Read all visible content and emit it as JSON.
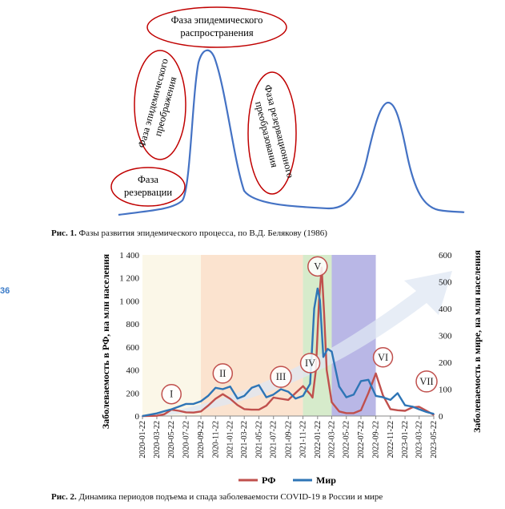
{
  "page_number": "36",
  "figure1": {
    "caption_bold": "Рис. 1.",
    "caption_text": " Фазы развития эпидемического процесса, по В.Д. Белякову (1986)",
    "phases": {
      "reservation_line1": "Фаза",
      "reservation_line2": "резервации",
      "transformation_line1": "Фаза эпидемического",
      "transformation_line2": "преображения",
      "spread_line1": "Фаза эпидемического",
      "spread_line2": "распространения",
      "reservation_transform_line1": "Фаза резервационного",
      "reservation_transform_line2": "преобразования"
    },
    "colors": {
      "curve": "#4472c4",
      "ellipse": "#c00000"
    }
  },
  "figure2": {
    "caption_bold": "Рис. 2.",
    "caption_text": " Динамика периодов подъема и спада заболеваемости COVID-19 в России и мире",
    "legend": {
      "rf": "РФ",
      "world": "Мир"
    }
  },
  "chart_data": {
    "type": "line",
    "title": "",
    "ylabel_left": "Заболеваемость в РФ, на млн населения",
    "ylabel_right": "Заболеваемость в мире, на млн населения",
    "yticks_left": [
      "0",
      "200",
      "400",
      "600",
      "800",
      "1 000",
      "1 200",
      "1 400"
    ],
    "yticks_right": [
      "0",
      "100",
      "200",
      "300",
      "400",
      "500",
      "600"
    ],
    "ylim_left": [
      0,
      1400
    ],
    "ylim_right": [
      0,
      600
    ],
    "x_categories": [
      "2020-01-22",
      "2020-03-22",
      "2020-05-22",
      "2020-07-22",
      "2020-09-22",
      "2020-11-22",
      "2021-01-22",
      "2021-03-22",
      "2021-05-22",
      "2021-07-22",
      "2021-09-22",
      "2021-11-22",
      "2022-01-22",
      "2022-03-22",
      "2022-05-22",
      "2022-07-22",
      "2022-09-22",
      "2022-11-22",
      "2023-01-22",
      "2023-03-22",
      "2023-05-22"
    ],
    "period_labels": [
      "I",
      "II",
      "III",
      "IV",
      "V",
      "VI",
      "VII"
    ],
    "period_label_positions": [
      {
        "label": "I",
        "x": "2020-05-22",
        "y_left": 190
      },
      {
        "label": "II",
        "x": "2020-12-22",
        "y_left": 370
      },
      {
        "label": "III",
        "x": "2021-08-22",
        "y_left": 340
      },
      {
        "label": "IV",
        "x": "2021-12-22",
        "y_left": 460
      },
      {
        "label": "V",
        "x": "2022-01-22",
        "y_left": 1300
      },
      {
        "label": "VI",
        "x": "2022-10-22",
        "y_left": 510
      },
      {
        "label": "VII",
        "x": "2023-04-22",
        "y_left": 300
      }
    ],
    "shaded_periods": [
      {
        "from": "2020-01-22",
        "to": "2020-09-22",
        "color": "#fbf7e8"
      },
      {
        "from": "2020-09-22",
        "to": "2021-11-22",
        "color": "#fbe3cf"
      },
      {
        "from": "2021-11-22",
        "to": "2022-03-22",
        "color": "#d6ebcb"
      },
      {
        "from": "2022-03-22",
        "to": "2022-09-22",
        "color": "#b9b7e6"
      }
    ],
    "series": [
      {
        "name": "РФ",
        "axis": "left",
        "color": "#c0504d",
        "points": [
          [
            "2020-01-22",
            0
          ],
          [
            "2020-03-22",
            2
          ],
          [
            "2020-04-22",
            15
          ],
          [
            "2020-05-22",
            55
          ],
          [
            "2020-06-22",
            45
          ],
          [
            "2020-07-22",
            32
          ],
          [
            "2020-08-22",
            30
          ],
          [
            "2020-09-22",
            40
          ],
          [
            "2020-10-22",
            90
          ],
          [
            "2020-11-22",
            150
          ],
          [
            "2020-12-22",
            190
          ],
          [
            "2021-01-22",
            150
          ],
          [
            "2021-02-22",
            95
          ],
          [
            "2021-03-22",
            60
          ],
          [
            "2021-04-22",
            55
          ],
          [
            "2021-05-22",
            55
          ],
          [
            "2021-06-22",
            90
          ],
          [
            "2021-07-22",
            160
          ],
          [
            "2021-08-22",
            150
          ],
          [
            "2021-09-22",
            140
          ],
          [
            "2021-10-22",
            200
          ],
          [
            "2021-11-22",
            260
          ],
          [
            "2021-12-22",
            190
          ],
          [
            "2022-01-01",
            160
          ],
          [
            "2022-01-15",
            400
          ],
          [
            "2022-01-28",
            1000
          ],
          [
            "2022-02-08",
            1290
          ],
          [
            "2022-02-18",
            900
          ],
          [
            "2022-03-01",
            400
          ],
          [
            "2022-03-22",
            120
          ],
          [
            "2022-04-22",
            40
          ],
          [
            "2022-05-22",
            25
          ],
          [
            "2022-06-22",
            25
          ],
          [
            "2022-07-22",
            50
          ],
          [
            "2022-08-22",
            200
          ],
          [
            "2022-09-22",
            370
          ],
          [
            "2022-10-22",
            180
          ],
          [
            "2022-11-22",
            60
          ],
          [
            "2022-12-22",
            50
          ],
          [
            "2023-01-22",
            45
          ],
          [
            "2023-02-22",
            75
          ],
          [
            "2023-03-22",
            80
          ],
          [
            "2023-04-22",
            45
          ],
          [
            "2023-05-22",
            10
          ]
        ]
      },
      {
        "name": "Мир",
        "axis": "right",
        "color": "#2e75b6",
        "points": [
          [
            "2020-01-22",
            0
          ],
          [
            "2020-03-22",
            10
          ],
          [
            "2020-04-22",
            18
          ],
          [
            "2020-05-22",
            25
          ],
          [
            "2020-06-22",
            35
          ],
          [
            "2020-07-22",
            45
          ],
          [
            "2020-08-22",
            45
          ],
          [
            "2020-09-22",
            55
          ],
          [
            "2020-10-22",
            75
          ],
          [
            "2020-11-22",
            105
          ],
          [
            "2020-12-22",
            100
          ],
          [
            "2021-01-22",
            110
          ],
          [
            "2021-02-22",
            65
          ],
          [
            "2021-03-22",
            75
          ],
          [
            "2021-04-22",
            105
          ],
          [
            "2021-05-22",
            115
          ],
          [
            "2021-06-22",
            70
          ],
          [
            "2021-07-22",
            80
          ],
          [
            "2021-08-22",
            100
          ],
          [
            "2021-09-22",
            90
          ],
          [
            "2021-10-22",
            65
          ],
          [
            "2021-11-22",
            75
          ],
          [
            "2021-12-22",
            120
          ],
          [
            "2022-01-08",
            400
          ],
          [
            "2022-01-22",
            475
          ],
          [
            "2022-02-01",
            430
          ],
          [
            "2022-02-15",
            220
          ],
          [
            "2022-03-05",
            250
          ],
          [
            "2022-03-22",
            240
          ],
          [
            "2022-04-22",
            110
          ],
          [
            "2022-05-22",
            70
          ],
          [
            "2022-06-22",
            80
          ],
          [
            "2022-07-22",
            130
          ],
          [
            "2022-08-22",
            135
          ],
          [
            "2022-09-22",
            75
          ],
          [
            "2022-10-22",
            70
          ],
          [
            "2022-11-22",
            60
          ],
          [
            "2022-12-22",
            85
          ],
          [
            "2023-01-22",
            40
          ],
          [
            "2023-02-22",
            35
          ],
          [
            "2023-03-22",
            25
          ],
          [
            "2023-04-22",
            15
          ],
          [
            "2023-05-22",
            8
          ]
        ]
      }
    ]
  }
}
